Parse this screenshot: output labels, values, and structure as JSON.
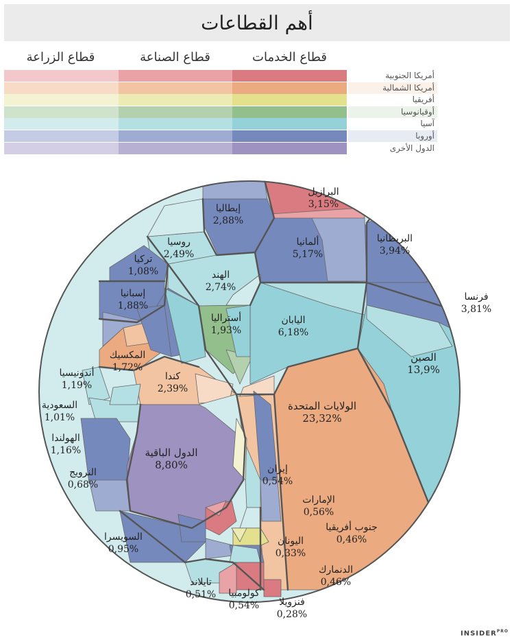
{
  "title": "أهم القطاعات",
  "brand": "INSIDER",
  "brand_sup": "PRO",
  "sectors": [
    "قطاع الخدمات",
    "قطاع الصناعة",
    "قطاع الزراعة"
  ],
  "colors": {
    "south_america": [
      "#d97b80",
      "#e9a3a6",
      "#f2c8ca"
    ],
    "north_america": [
      "#ebaa7f",
      "#f2c4a2",
      "#f7dbc6"
    ],
    "africa": [
      "#e3e08e",
      "#ecebb3",
      "#f3f2d3"
    ],
    "oceania": [
      "#93bf8c",
      "#b3d1ae",
      "#cfe2cb"
    ],
    "asia": [
      "#95d1d8",
      "#b4dfe3",
      "#d2ecee"
    ],
    "europe": [
      "#7589bd",
      "#9eacd2",
      "#c3cce4"
    ],
    "others": [
      "#9d92c0",
      "#b8b0d3",
      "#d3cde5"
    ]
  },
  "chart_data": {
    "type": "voronoi-treemap",
    "title": "أهم القطاعات",
    "legend": [
      "أمريكا الجنوبية",
      "أمريكا الشمالية",
      "أفريقيا",
      "أوقيانوسيا",
      "آسيا",
      "أوروبا",
      "الدول الأخرى"
    ],
    "series": [
      "قطاع الخدمات",
      "قطاع الصناعة",
      "قطاع الزراعة"
    ],
    "countries": [
      {
        "name": "البرازيل",
        "value": "3,15%",
        "group": "south_america"
      },
      {
        "name": "إيطاليا",
        "value": "2,88%",
        "group": "europe"
      },
      {
        "name": "روسيا",
        "value": "2,49%",
        "group": "europe"
      },
      {
        "name": "ألمانيا",
        "value": "5,17%",
        "group": "europe"
      },
      {
        "name": "البريطانيا",
        "value": "3,94%",
        "group": "europe"
      },
      {
        "name": "تركيا",
        "value": "1,08%",
        "group": "europe"
      },
      {
        "name": "الهند",
        "value": "2,74%",
        "group": "asia"
      },
      {
        "name": "إسبانيا",
        "value": "1,88%",
        "group": "europe"
      },
      {
        "name": "فرنسا",
        "value": "3,81%",
        "group": "europe"
      },
      {
        "name": "أستراليا",
        "value": "1,93%",
        "group": "oceania"
      },
      {
        "name": "اليابان",
        "value": "6,18%",
        "group": "asia"
      },
      {
        "name": "المكسيك",
        "value": "1,72%",
        "group": "north_america"
      },
      {
        "name": "الصين",
        "value": "13,9%",
        "group": "asia"
      },
      {
        "name": "أندونيسيا",
        "value": "1,19%",
        "group": "asia"
      },
      {
        "name": "كندا",
        "value": "2,39%",
        "group": "north_america"
      },
      {
        "name": "السعودية",
        "value": "1,01%",
        "group": "asia"
      },
      {
        "name": "الولايات المتحدة",
        "value": "23,32%",
        "group": "north_america"
      },
      {
        "name": "الهولندا",
        "value": "1,16%",
        "group": "europe"
      },
      {
        "name": "الدول الباقية",
        "value": "8,80%",
        "group": "others"
      },
      {
        "name": "إيران",
        "value": "0,54%",
        "group": "asia"
      },
      {
        "name": "النرويج",
        "value": "0,68%",
        "group": "europe"
      },
      {
        "name": "الإمارات",
        "value": "0,56%",
        "group": "asia"
      },
      {
        "name": "جنوب أفريقيا",
        "value": "0,46%",
        "group": "africa"
      },
      {
        "name": "السويسرا",
        "value": "0,95%",
        "group": "europe"
      },
      {
        "name": "اليونان",
        "value": "0,33%",
        "group": "europe"
      },
      {
        "name": "الدنمارك",
        "value": "0,46%",
        "group": "europe"
      },
      {
        "name": "تايلاند",
        "value": "0,51%",
        "group": "asia"
      },
      {
        "name": "كولومبيا",
        "value": "0,54%",
        "group": "south_america"
      },
      {
        "name": "فنزويلا",
        "value": "0,28%",
        "group": "south_america"
      }
    ]
  }
}
